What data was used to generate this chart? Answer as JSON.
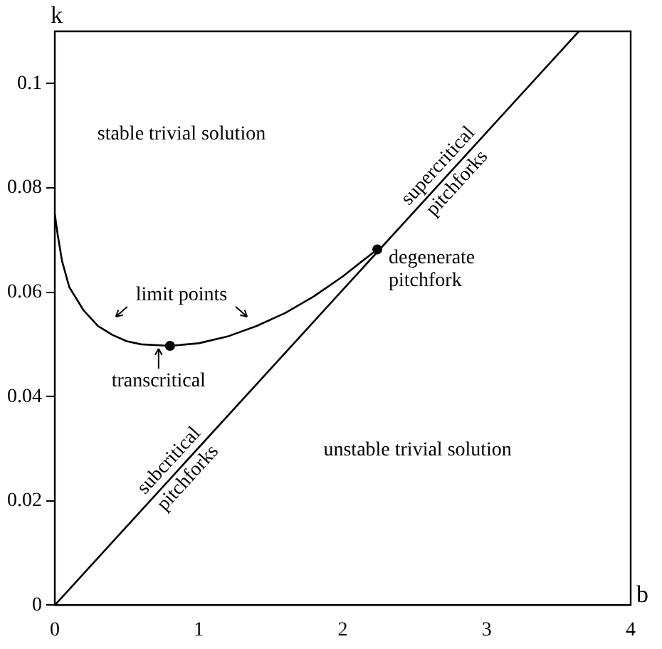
{
  "chart_data": {
    "type": "line",
    "xlabel": "b",
    "ylabel": "k",
    "xlim": [
      0,
      4
    ],
    "ylim": [
      0,
      0.11
    ],
    "xticks": [
      0,
      1,
      2,
      3,
      4
    ],
    "yticks": [
      0,
      0.02,
      0.04,
      0.06,
      0.08,
      0.1
    ],
    "series": [
      {
        "color": "#000000",
        "x": [
          0,
          3.64
        ],
        "values": [
          0,
          0.11
        ]
      },
      {
        "color": "#000000",
        "x": [
          0,
          0.02,
          0.05,
          0.1,
          0.2,
          0.3,
          0.4,
          0.5,
          0.6,
          0.8,
          1.0,
          1.2,
          1.4,
          1.6,
          1.8,
          2.0,
          2.1,
          2.24
        ],
        "values": [
          0.075,
          0.071,
          0.066,
          0.061,
          0.0565,
          0.0535,
          0.0518,
          0.0506,
          0.05,
          0.0497,
          0.0502,
          0.0515,
          0.0535,
          0.056,
          0.0592,
          0.063,
          0.0652,
          0.0682
        ]
      },
      {
        "type": "scatter",
        "color": "#000000",
        "marker": "circle",
        "x": [
          0.8,
          2.24
        ],
        "values": [
          0.0497,
          0.0682
        ]
      }
    ],
    "annotations": [
      "stable trivial solution",
      "unstable trivial solution",
      "limit points",
      {
        "text": "transcritical",
        "x": 0.8,
        "y": 0.0497
      },
      {
        "text": "degenerate\npitchfork",
        "x": 2.24,
        "y": 0.0682
      },
      {
        "text": "supercritical\npitchforks",
        "x": 2.73,
        "y": 0.0825
      },
      {
        "text": "subcritical\npitchforks",
        "x": 0.86,
        "y": 0.026
      }
    ]
  }
}
